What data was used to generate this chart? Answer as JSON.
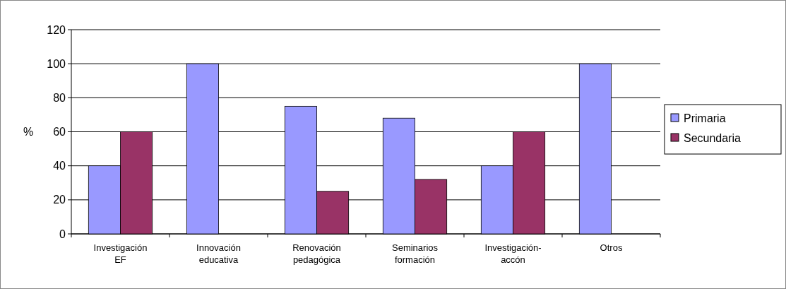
{
  "chart_data": {
    "type": "bar",
    "ylabel": "%",
    "categories": [
      "Investigación EF",
      "Innovación educativa",
      "Renovación pedagógica",
      "Seminarios formación",
      "Investigación-accón",
      "Otros"
    ],
    "series": [
      {
        "name": "Primaria",
        "color": "#9999ff",
        "values": [
          40,
          100,
          75,
          68,
          40,
          100
        ]
      },
      {
        "name": "Secundaria",
        "color": "#993366",
        "values": [
          60,
          0,
          25,
          32,
          60,
          0
        ]
      }
    ],
    "ylim": [
      0,
      120
    ],
    "yticks": [
      0,
      20,
      40,
      60,
      80,
      100,
      120
    ],
    "grid": "y",
    "legend": "right"
  }
}
